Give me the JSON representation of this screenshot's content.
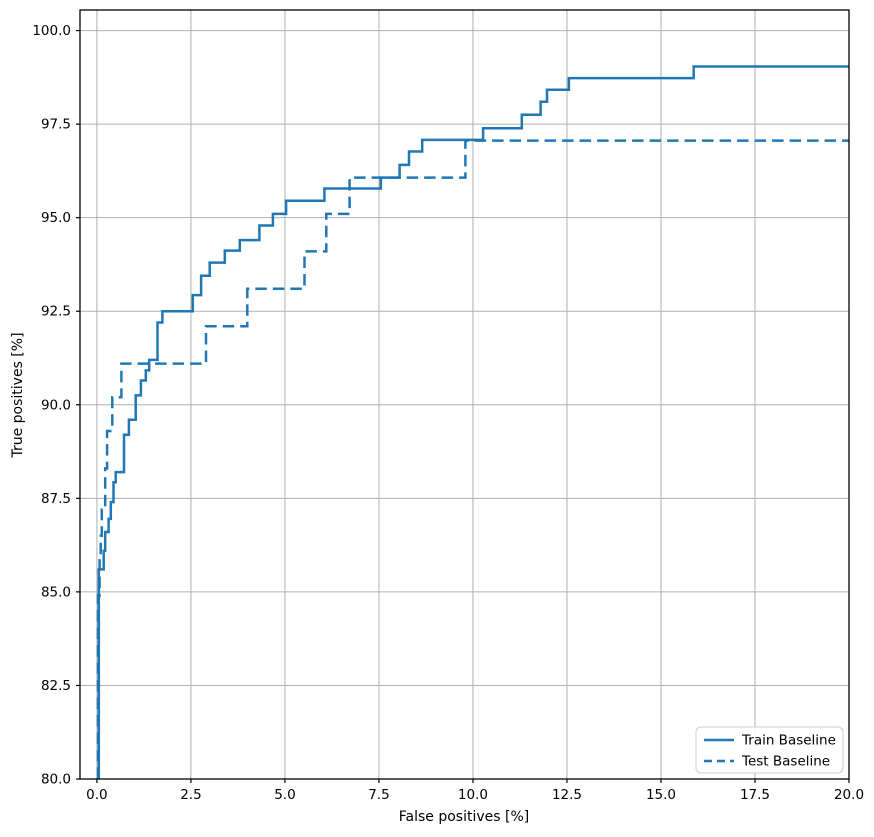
{
  "figure": {
    "background": "#ffffff",
    "frame_color": "#000000",
    "grid_color": "#b0b0b0"
  },
  "chart_data": {
    "type": "line",
    "subtype": "step-roc",
    "title": "",
    "xlabel": "False positives [%]",
    "ylabel": "True positives [%]",
    "xlim": [
      -0.45,
      20.0
    ],
    "ylim": [
      80.0,
      100.55
    ],
    "grid": true,
    "legend_position": "lower right",
    "line_color": "#1f77b4",
    "xticks": [
      0.0,
      2.5,
      5.0,
      7.5,
      10.0,
      12.5,
      15.0,
      17.5,
      20.0
    ],
    "xtick_labels": [
      "0.0",
      "2.5",
      "5.0",
      "7.5",
      "10.0",
      "12.5",
      "15.0",
      "17.5",
      "20.0"
    ],
    "yticks": [
      80.0,
      82.5,
      85.0,
      87.5,
      90.0,
      92.5,
      95.0,
      97.5,
      100.0
    ],
    "ytick_labels": [
      "80.0",
      "82.5",
      "85.0",
      "87.5",
      "90.0",
      "92.5",
      "95.0",
      "97.5",
      "100.0"
    ],
    "series": [
      {
        "name": "Train Baseline",
        "style": "solid",
        "step": "post",
        "baseline": 80.0,
        "points": [
          [
            0.05,
            85.6
          ],
          [
            0.18,
            86.1
          ],
          [
            0.22,
            86.6
          ],
          [
            0.31,
            86.95
          ],
          [
            0.37,
            87.4
          ],
          [
            0.44,
            87.93
          ],
          [
            0.5,
            88.2
          ],
          [
            0.72,
            89.2
          ],
          [
            0.85,
            89.6
          ],
          [
            1.03,
            90.25
          ],
          [
            1.17,
            90.65
          ],
          [
            1.3,
            90.92
          ],
          [
            1.39,
            91.2
          ],
          [
            1.61,
            92.2
          ],
          [
            1.74,
            92.5
          ],
          [
            2.55,
            92.93
          ],
          [
            2.77,
            93.45
          ],
          [
            3.0,
            93.8
          ],
          [
            3.4,
            94.12
          ],
          [
            3.8,
            94.4
          ],
          [
            4.32,
            94.79
          ],
          [
            4.68,
            95.1
          ],
          [
            5.03,
            95.45
          ],
          [
            6.05,
            95.78
          ],
          [
            7.55,
            96.07
          ],
          [
            8.05,
            96.41
          ],
          [
            8.3,
            96.77
          ],
          [
            8.65,
            97.08
          ],
          [
            10.27,
            97.39
          ],
          [
            11.3,
            97.75
          ],
          [
            11.8,
            98.1
          ],
          [
            11.97,
            98.42
          ],
          [
            12.55,
            98.73
          ],
          [
            15.87,
            99.04
          ],
          [
            20.0,
            99.04
          ]
        ]
      },
      {
        "name": "Test Baseline",
        "style": "dashed",
        "step": "post",
        "baseline": 80.0,
        "points": [
          [
            0.03,
            84.9
          ],
          [
            0.07,
            85.9
          ],
          [
            0.1,
            86.5
          ],
          [
            0.13,
            87.2
          ],
          [
            0.22,
            88.3
          ],
          [
            0.27,
            89.3
          ],
          [
            0.41,
            90.2
          ],
          [
            0.65,
            91.1
          ],
          [
            2.9,
            92.1
          ],
          [
            4.0,
            93.1
          ],
          [
            5.52,
            94.1
          ],
          [
            6.1,
            95.1
          ],
          [
            6.72,
            96.07
          ],
          [
            9.8,
            97.06
          ],
          [
            20.0,
            97.06
          ]
        ]
      }
    ]
  },
  "legend": {
    "items": [
      {
        "label": "Train Baseline",
        "swatch": "solid-line"
      },
      {
        "label": "Test Baseline",
        "swatch": "dashed-line"
      }
    ]
  }
}
